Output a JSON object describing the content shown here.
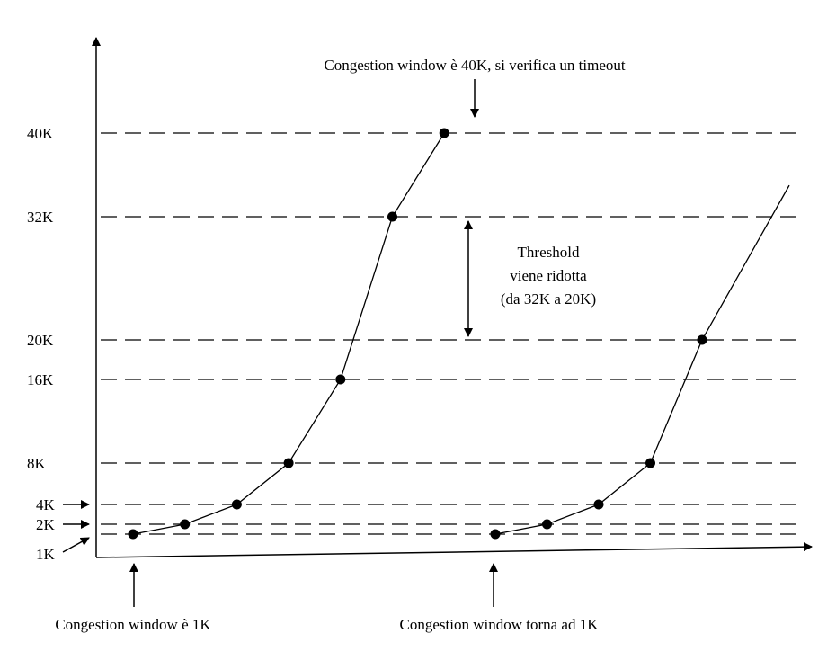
{
  "chart_data": {
    "type": "line",
    "title": "",
    "xlabel": "",
    "ylabel": "",
    "ylim": [
      0,
      45
    ],
    "y_ticks": [
      {
        "label": "1K",
        "value": 1
      },
      {
        "label": "2K",
        "value": 2
      },
      {
        "label": "4K",
        "value": 4
      },
      {
        "label": "8K",
        "value": 8
      },
      {
        "label": "16K",
        "value": 16
      },
      {
        "label": "20K",
        "value": 20
      },
      {
        "label": "32K",
        "value": 32
      },
      {
        "label": "40K",
        "value": 40
      }
    ],
    "gridlines": "dashed horizontal at tick values",
    "series": [
      {
        "x": [
          1,
          2,
          3,
          4,
          5,
          6,
          7
        ],
        "values": [
          1,
          2,
          4,
          8,
          16,
          32,
          40
        ]
      },
      {
        "x": [
          8,
          9,
          10,
          11,
          12
        ],
        "values": [
          1,
          2,
          4,
          8,
          20
        ],
        "trailing_value": 35
      }
    ],
    "annotations": {
      "top": "Congestion window è 40K, si verifica un timeout",
      "threshold": [
        "Threshold",
        "viene ridotta",
        "(da 32K a 20K)"
      ],
      "bottom_left": "Congestion window è  1K",
      "bottom_right": "Congestion window torna ad 1K"
    }
  }
}
